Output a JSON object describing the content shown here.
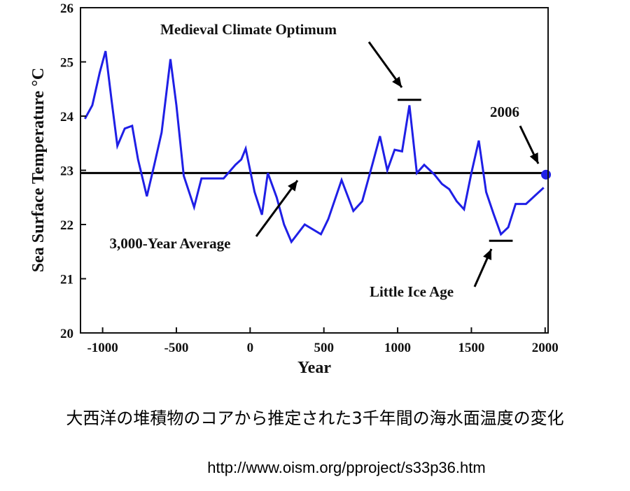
{
  "chart_data": {
    "type": "line",
    "xlabel": "Year",
    "ylabel": "Sea Surface Temperature °C",
    "xlim": [
      -1150,
      2020
    ],
    "ylim": [
      20,
      26
    ],
    "x_ticks": [
      -1000,
      -500,
      0,
      500,
      1000,
      1500,
      2000
    ],
    "x_tick_labels": [
      "-1000",
      "-500",
      "0",
      "500",
      "1000",
      "1500",
      "2000"
    ],
    "y_ticks": [
      20,
      21,
      22,
      23,
      24,
      25,
      26
    ],
    "y_tick_labels": [
      "20",
      "21",
      "22",
      "23",
      "24",
      "25",
      "26"
    ],
    "grid": false,
    "series": [
      {
        "color": "#1f1fe6",
        "x": [
          -1120,
          -1070,
          -1020,
          -980,
          -940,
          -900,
          -850,
          -800,
          -760,
          -700,
          -650,
          -600,
          -540,
          -500,
          -450,
          -380,
          -330,
          -270,
          -180,
          -100,
          -60,
          -30,
          30,
          80,
          120,
          180,
          230,
          280,
          370,
          480,
          530,
          620,
          700,
          760,
          830,
          880,
          930,
          980,
          1030,
          1080,
          1130,
          1180,
          1250,
          1300,
          1350,
          1400,
          1450,
          1500,
          1550,
          1600,
          1650,
          1700,
          1750,
          1800,
          1870,
          1990
        ],
        "y": [
          23.95,
          24.2,
          24.8,
          25.2,
          24.3,
          23.45,
          23.77,
          23.82,
          23.2,
          22.52,
          23.1,
          23.7,
          25.05,
          24.2,
          22.9,
          22.32,
          22.85,
          22.85,
          22.85,
          23.1,
          23.2,
          23.4,
          22.6,
          22.18,
          22.95,
          22.5,
          22.0,
          21.68,
          22.0,
          21.82,
          22.1,
          22.82,
          22.25,
          22.43,
          23.12,
          23.63,
          23.0,
          23.38,
          23.35,
          24.2,
          22.95,
          23.1,
          22.92,
          22.75,
          22.65,
          22.43,
          22.28,
          22.95,
          23.55,
          22.6,
          22.2,
          21.82,
          21.95,
          22.38,
          22.38,
          22.68
        ]
      }
    ],
    "reference_line": {
      "y": 22.95,
      "label": "3,000-Year Average"
    },
    "highlight_point": {
      "x": 2006,
      "y": 22.92,
      "label": "2006",
      "color": "#1f1fe6"
    },
    "annotations": [
      {
        "text": "Medieval Climate Optimum",
        "bar_x": [
          1000,
          1160
        ],
        "bar_y": 24.3
      },
      {
        "text": "Little Ice Age",
        "bar_x": [
          1620,
          1780
        ],
        "bar_y": 21.7
      }
    ]
  },
  "caption": "大西洋の堆積物のコアから推定された3千年間の海水面温度の変化",
  "source_url": "http://www.oism.org/pproject/s33p36.htm"
}
